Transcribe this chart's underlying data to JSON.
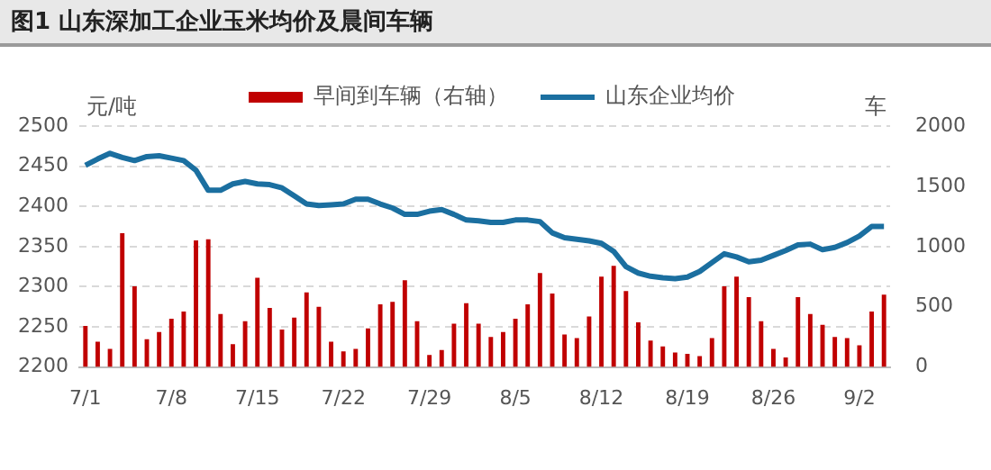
{
  "chart_data": {
    "type": "bar",
    "title": "图1 山东深加工企业玉米均价及晨间车辆",
    "ylabel": "元/吨",
    "y2label": "车",
    "categories": [
      "7/1",
      null,
      null,
      null,
      null,
      null,
      null,
      "7/8",
      null,
      null,
      null,
      null,
      null,
      null,
      "7/15",
      null,
      null,
      null,
      null,
      null,
      null,
      "7/22",
      null,
      null,
      null,
      null,
      null,
      null,
      "7/29",
      null,
      null,
      null,
      null,
      null,
      null,
      "8/5",
      null,
      null,
      null,
      null,
      null,
      null,
      "8/12",
      null,
      null,
      null,
      null,
      null,
      null,
      "8/19",
      null,
      null,
      null,
      null,
      null,
      null,
      "8/26",
      null,
      null,
      null,
      null,
      null,
      null,
      "9/2",
      null,
      null
    ],
    "series": [
      {
        "name": "早间到车辆（右轴）",
        "axis": "y2",
        "color": "#c00000",
        "values": [
          340,
          210,
          150,
          1110,
          670,
          230,
          290,
          400,
          460,
          1050,
          1060,
          440,
          190,
          380,
          740,
          490,
          310,
          410,
          620,
          500,
          210,
          130,
          150,
          320,
          520,
          540,
          720,
          380,
          100,
          140,
          360,
          530,
          360,
          250,
          290,
          400,
          520,
          780,
          610,
          270,
          240,
          420,
          750,
          840,
          630,
          370,
          220,
          170,
          120,
          110,
          90,
          240,
          670,
          750,
          580,
          380,
          150,
          80,
          580,
          440,
          350,
          250,
          240,
          180,
          460,
          600
        ]
      },
      {
        "name": "山东企业均价",
        "type": "line",
        "color": "#1b6fa0",
        "values": [
          2451,
          2459,
          2466,
          2461,
          2457,
          2462,
          2463,
          2460,
          2457,
          2445,
          2420,
          2420,
          2428,
          2431,
          2428,
          2427,
          2423,
          2413,
          2403,
          2401,
          2402,
          2403,
          2409,
          2409,
          2403,
          2398,
          2390,
          2390,
          2394,
          2396,
          2390,
          2383,
          2382,
          2380,
          2380,
          2383,
          2383,
          2381,
          2367,
          2361,
          2359,
          2357,
          2354,
          2344,
          2325,
          2317,
          2313,
          2311,
          2310,
          2312,
          2319,
          2330,
          2341,
          2337,
          2331,
          2333,
          2339,
          2345,
          2352,
          2353,
          2346,
          2349,
          2355,
          2363,
          2375,
          2375
        ]
      }
    ],
    "ylim": [
      2200,
      2500
    ],
    "yticks": [
      2200,
      2250,
      2300,
      2350,
      2400,
      2450,
      2500
    ],
    "y2lim": [
      0,
      2000
    ],
    "y2ticks": [
      0,
      500,
      1000,
      1500,
      2000
    ],
    "grid": "y",
    "legend": "top"
  }
}
